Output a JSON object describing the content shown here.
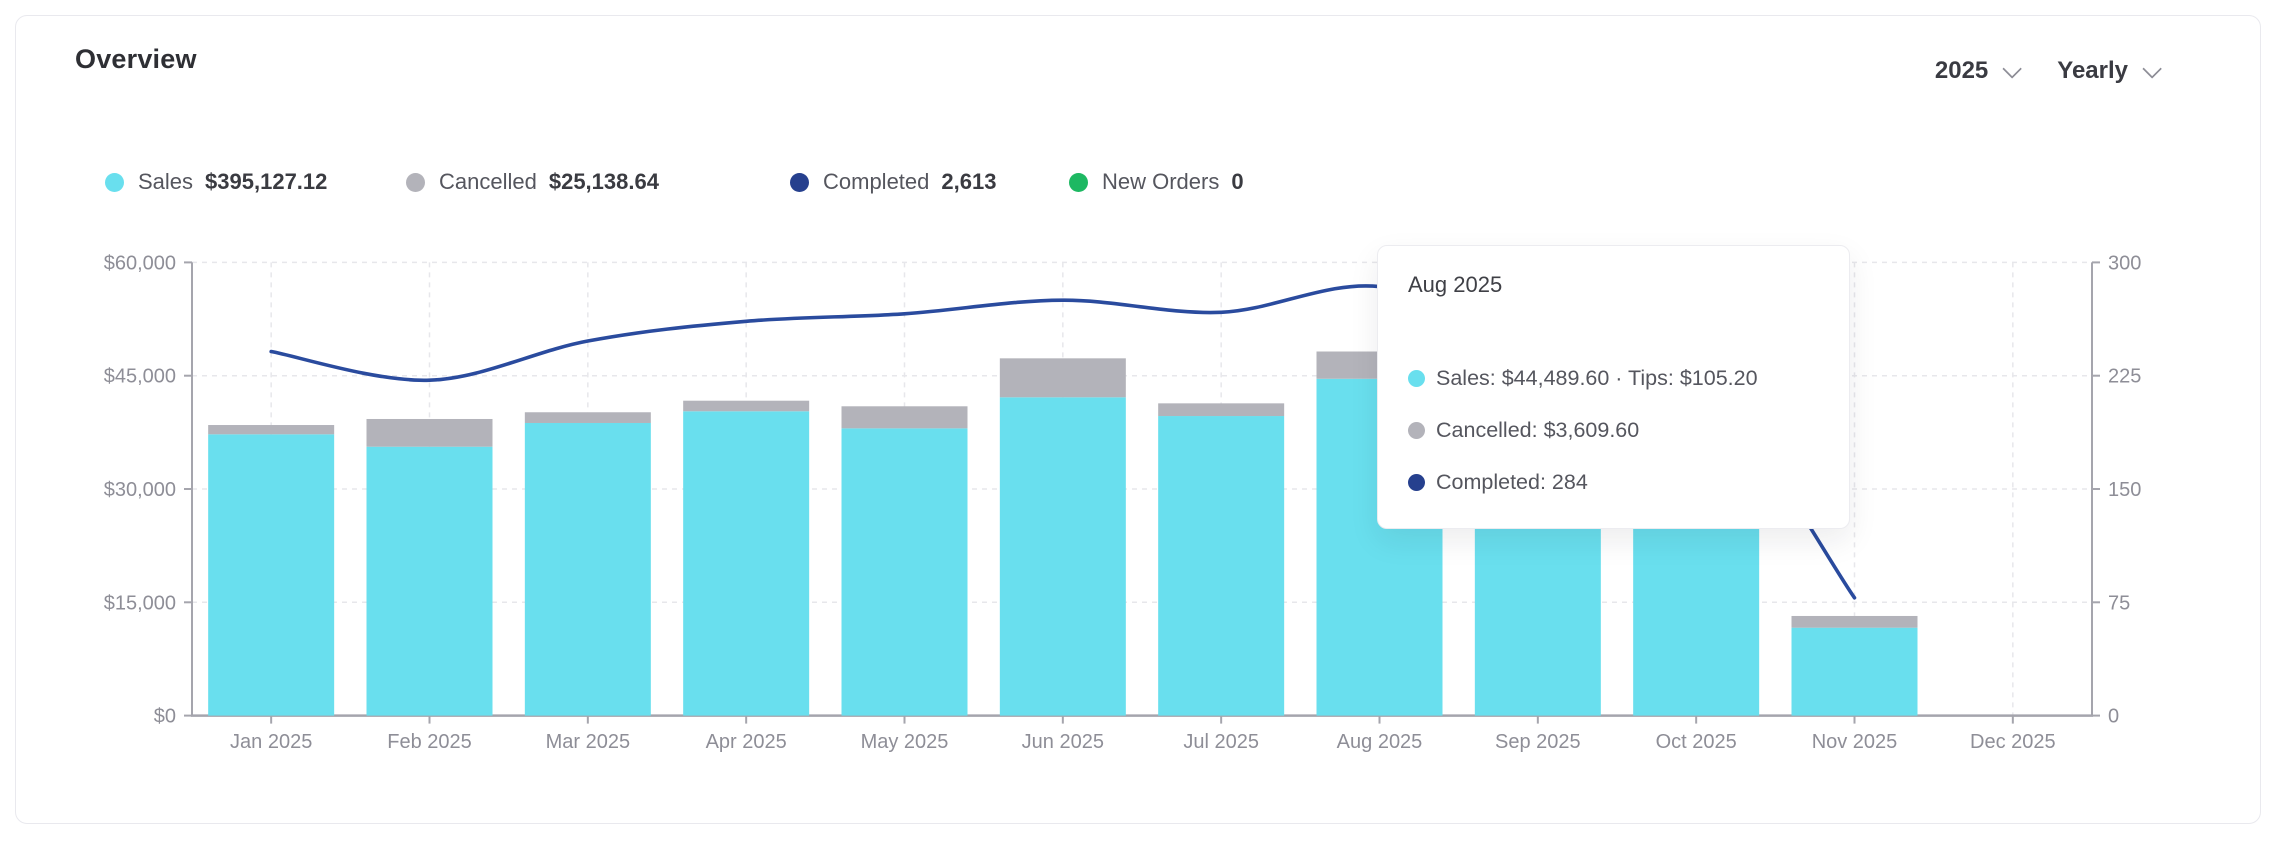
{
  "panel": {
    "title": "Overview"
  },
  "controls": {
    "year": {
      "label": "2025"
    },
    "range": {
      "label": "Yearly"
    }
  },
  "legend": [
    {
      "id": "sales",
      "label": "Sales",
      "value": "$395,127.12",
      "color": "#69dfee"
    },
    {
      "id": "cancelled",
      "label": "Cancelled",
      "value": "$25,138.64",
      "color": "#b3b3ba"
    },
    {
      "id": "completed",
      "label": "Completed",
      "value": "2,613",
      "color": "#26408e"
    },
    {
      "id": "new-orders",
      "label": "New Orders",
      "value": "0",
      "color": "#1db862"
    }
  ],
  "tooltip": {
    "title": "Aug 2025",
    "rows": [
      {
        "series": "sales",
        "color": "#69dfee",
        "text": "Sales: $44,489.60 · Tips: $105.20"
      },
      {
        "series": "cancelled",
        "color": "#b3b3ba",
        "text": "Cancelled: $3,609.60"
      },
      {
        "series": "completed",
        "color": "#26408e",
        "text": "Completed: 284"
      }
    ]
  },
  "chart_data": {
    "type": "bar+line",
    "categories": [
      "Jan 2025",
      "Feb 2025",
      "Mar 2025",
      "Apr 2025",
      "May 2025",
      "Jun 2025",
      "Jul 2025",
      "Aug 2025",
      "Sep 2025",
      "Oct 2025",
      "Nov 2025",
      "Dec 2025"
    ],
    "series": [
      {
        "name": "Sales",
        "type": "bar",
        "stack": "orders",
        "axis": "left",
        "color": "#69dfee",
        "values": [
          37240,
          35600,
          38740,
          40290,
          38030,
          42140,
          39660,
          44594.8,
          33600,
          33592.32,
          11640,
          0
        ]
      },
      {
        "name": "Cancelled",
        "type": "bar",
        "stack": "orders",
        "axis": "left",
        "color": "#b3b3ba",
        "values": [
          1230,
          3670,
          1420,
          1400,
          2920,
          5160,
          1680,
          3609.6,
          1250,
          1249.04,
          1550,
          0
        ]
      },
      {
        "name": "Completed",
        "type": "line",
        "axis": "right",
        "color": "#2a4b9e",
        "values": [
          241,
          222,
          248,
          261,
          266,
          275,
          267,
          284,
          245,
          226,
          78,
          null
        ]
      }
    ],
    "left_axis": {
      "min": 0,
      "max": 60000,
      "tick_labels": [
        "$0",
        "$15,000",
        "$30,000",
        "$45,000",
        "$60,000"
      ]
    },
    "right_axis": {
      "min": 0,
      "max": 300,
      "tick_labels": [
        "0",
        "75",
        "150",
        "225",
        "300"
      ]
    },
    "grid": "dashed",
    "legend_position": "top",
    "title": "Overview"
  }
}
